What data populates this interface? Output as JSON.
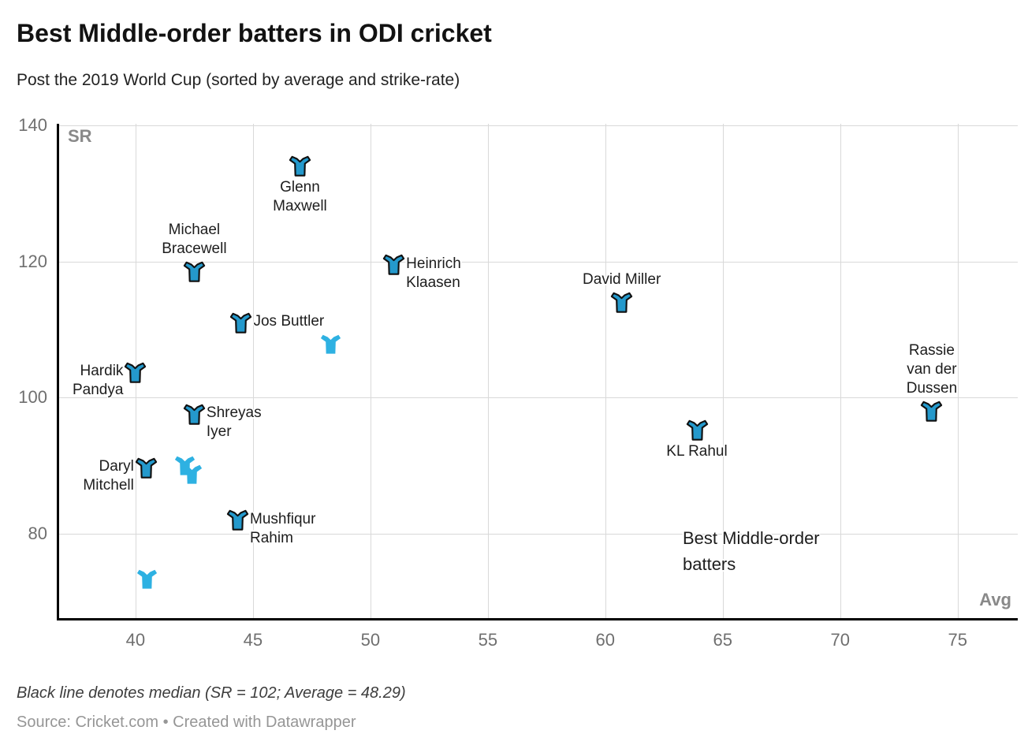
{
  "header": {
    "title": "Best Middle-order batters in ODI cricket",
    "subtitle": "Post the 2019 World Cup (sorted by average and strike-rate)"
  },
  "chart_data": {
    "type": "scatter",
    "title": "Best Middle-order batters in ODI cricket",
    "subtitle": "Post the 2019 World Cup (sorted by average and strike-rate)",
    "marker": "cricket-jersey",
    "grid": true,
    "x_axis": {
      "label": "Avg",
      "range": [
        36.68,
        77.56
      ],
      "ticks": [
        40,
        45,
        50,
        55,
        60,
        65,
        70,
        75
      ]
    },
    "y_axis": {
      "label": "SR",
      "range": [
        67.5,
        140.23
      ],
      "ticks": [
        80,
        100,
        120,
        140
      ]
    },
    "colors": {
      "labeled_fill": "#2499cc",
      "unlabeled_fill": "#2eb1e2",
      "outline": "#101010",
      "gridline": "#d9d9d9",
      "axis_line": "#000000"
    },
    "points": [
      {
        "name": "Glenn Maxwell",
        "avg": 47.0,
        "sr": 134.0,
        "label_lines": [
          "Glenn",
          "Maxwell"
        ],
        "label_side": "below"
      },
      {
        "name": "Michael Bracewell",
        "avg": 42.5,
        "sr": 118.5,
        "label_lines": [
          "Michael",
          "Bracewell"
        ],
        "label_side": "above"
      },
      {
        "name": "Heinrich Klaasen",
        "avg": 51.0,
        "sr": 119.5,
        "label_lines": [
          "Heinrich",
          "Klaasen"
        ],
        "label_side": "right"
      },
      {
        "name": "David Miller",
        "avg": 60.7,
        "sr": 114.0,
        "label_lines": [
          "David Miller"
        ],
        "label_side": "above"
      },
      {
        "name": "Jos Buttler",
        "avg": 44.5,
        "sr": 111.0,
        "label_lines": [
          "Jos Buttler"
        ],
        "label_side": "right"
      },
      {
        "name": "Hardik Pandya",
        "avg": 40.0,
        "sr": 103.7,
        "label_lines": [
          "Hardik",
          "Pandya"
        ],
        "label_side": "left"
      },
      {
        "name": "Shreyas Iyer",
        "avg": 42.5,
        "sr": 97.6,
        "label_lines": [
          "Shreyas",
          "Iyer"
        ],
        "label_side": "right"
      },
      {
        "name": "Rassie van der Dussen",
        "avg": 73.9,
        "sr": 98.0,
        "label_lines": [
          "Rassie",
          "van der",
          "Dussen"
        ],
        "label_side": "above"
      },
      {
        "name": "KL Rahul",
        "avg": 63.9,
        "sr": 95.2,
        "label_lines": [
          "KL Rahul"
        ],
        "label_side": "below"
      },
      {
        "name": "Daryl Mitchell",
        "avg": 40.45,
        "sr": 89.7,
        "label_lines": [
          "Daryl",
          "Mitchell"
        ],
        "label_side": "left"
      },
      {
        "name": "Mushfiqur Rahim",
        "avg": 44.35,
        "sr": 82.0,
        "label_lines": [
          "Mushfiqur",
          "Rahim"
        ],
        "label_side": "right"
      },
      {
        "avg": 48.3,
        "sr": 107.9,
        "unlabeled": true
      },
      {
        "avg": 42.1,
        "sr": 90.0,
        "unlabeled": true
      },
      {
        "avg": 42.4,
        "sr": 88.8,
        "unlabeled": true
      },
      {
        "avg": 40.5,
        "sr": 73.3,
        "unlabeled": true
      }
    ],
    "annotation": {
      "lines": [
        "Best Middle-order",
        "batters"
      ]
    }
  },
  "footer": {
    "note": "Black line denotes median (SR = 102; Average = 48.29)",
    "source": "Source: Cricket.com • Created with Datawrapper"
  }
}
